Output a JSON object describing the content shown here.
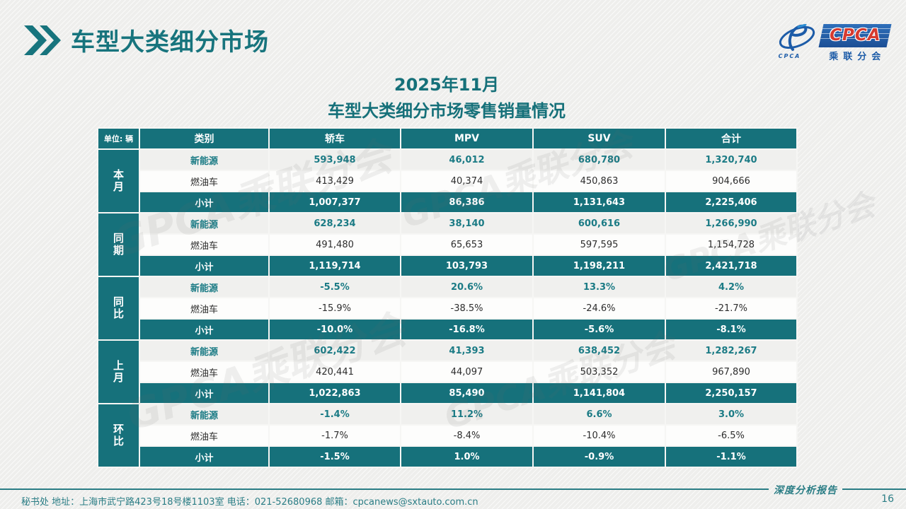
{
  "slide": {
    "title": "车型大类细分市场",
    "report_label": "深度分析报告",
    "page_number": "16",
    "footer_contact": "秘书处   地址：上海市武宁路423号18号楼1103室 电话：021-52680968   邮箱：cpcanews@sxtauto.com.cn"
  },
  "logo": {
    "acronym": "CPCA",
    "org_name": "乘联分会",
    "emblem_caption": "CPCA"
  },
  "table": {
    "title_line1": "2025年11月",
    "title_line2": "车型大类细分市场零售销量情况",
    "unit_label": "单位: 辆",
    "watermark": "GPCA乘联分会",
    "columns": [
      "类别",
      "轿车",
      "MPV",
      "SUV",
      "合计"
    ],
    "groups": [
      {
        "name": "本月",
        "rows": [
          {
            "label": "新能源",
            "type": "ne",
            "values": [
              "593,948",
              "46,012",
              "680,780",
              "1,320,740"
            ]
          },
          {
            "label": "燃油车",
            "type": "fuel",
            "values": [
              "413,429",
              "40,374",
              "450,863",
              "904,666"
            ]
          },
          {
            "label": "小计",
            "type": "subtotal",
            "values": [
              "1,007,377",
              "86,386",
              "1,131,643",
              "2,225,406"
            ]
          }
        ]
      },
      {
        "name": "同期",
        "rows": [
          {
            "label": "新能源",
            "type": "ne",
            "values": [
              "628,234",
              "38,140",
              "600,616",
              "1,266,990"
            ]
          },
          {
            "label": "燃油车",
            "type": "fuel",
            "values": [
              "491,480",
              "65,653",
              "597,595",
              "1,154,728"
            ]
          },
          {
            "label": "小计",
            "type": "subtotal",
            "values": [
              "1,119,714",
              "103,793",
              "1,198,211",
              "2,421,718"
            ]
          }
        ]
      },
      {
        "name": "同比",
        "rows": [
          {
            "label": "新能源",
            "type": "ne",
            "values": [
              "-5.5%",
              "20.6%",
              "13.3%",
              "4.2%"
            ]
          },
          {
            "label": "燃油车",
            "type": "fuel",
            "values": [
              "-15.9%",
              "-38.5%",
              "-24.6%",
              "-21.7%"
            ]
          },
          {
            "label": "小计",
            "type": "subtotal",
            "values": [
              "-10.0%",
              "-16.8%",
              "-5.6%",
              "-8.1%"
            ]
          }
        ]
      },
      {
        "name": "上月",
        "rows": [
          {
            "label": "新能源",
            "type": "ne",
            "values": [
              "602,422",
              "41,393",
              "638,452",
              "1,282,267"
            ]
          },
          {
            "label": "燃油车",
            "type": "fuel",
            "values": [
              "420,441",
              "44,097",
              "503,352",
              "967,890"
            ]
          },
          {
            "label": "小计",
            "type": "subtotal",
            "values": [
              "1,022,863",
              "85,490",
              "1,141,804",
              "2,250,157"
            ]
          }
        ]
      },
      {
        "name": "环比",
        "rows": [
          {
            "label": "新能源",
            "type": "ne",
            "values": [
              "-1.4%",
              "11.2%",
              "6.6%",
              "3.0%"
            ]
          },
          {
            "label": "燃油车",
            "type": "fuel",
            "values": [
              "-1.7%",
              "-8.4%",
              "-10.4%",
              "-6.5%"
            ]
          },
          {
            "label": "小计",
            "type": "subtotal",
            "values": [
              "-1.5%",
              "1.0%",
              "-0.9%",
              "-1.1%"
            ]
          }
        ]
      }
    ]
  },
  "colors": {
    "teal": "#16717b",
    "teal_text": "#1b7b85",
    "title_teal": "#17747d",
    "logo_blue": "#1d5ca8",
    "logo_red": "#d63b30"
  }
}
